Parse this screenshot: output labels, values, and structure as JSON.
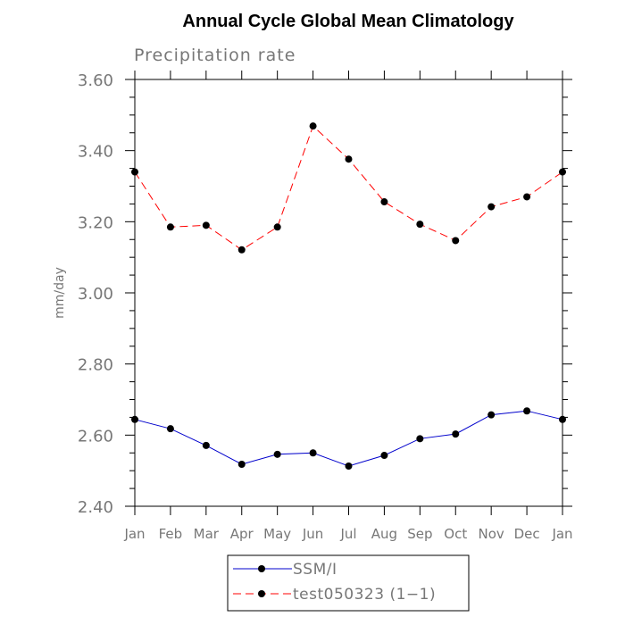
{
  "chart_data": {
    "type": "line",
    "title": "Annual Cycle Global Mean Climatology",
    "subtitle": "Precipitation rate",
    "xlabel": "",
    "ylabel": "mm/day",
    "categories": [
      "Jan",
      "Feb",
      "Mar",
      "Apr",
      "May",
      "Jun",
      "Jul",
      "Aug",
      "Sep",
      "Oct",
      "Nov",
      "Dec",
      "Jan"
    ],
    "ylim": [
      2.4,
      3.6
    ],
    "yticks": [
      "2.40",
      "2.60",
      "2.80",
      "3.00",
      "3.20",
      "3.40",
      "3.60"
    ],
    "ytick_values": [
      2.4,
      2.6,
      2.8,
      3.0,
      3.2,
      3.4,
      3.6
    ],
    "grid": false,
    "legend_position": "bottom",
    "series": [
      {
        "name": "SSM/I",
        "color": "#0000cc",
        "line_style": "solid",
        "values": [
          2.644,
          2.618,
          2.571,
          2.518,
          2.546,
          2.55,
          2.513,
          2.543,
          2.59,
          2.603,
          2.657,
          2.668,
          2.644
        ]
      },
      {
        "name": "test050323 (1−1)",
        "color": "#ff0000",
        "line_style": "dashed",
        "values": [
          3.34,
          3.185,
          3.19,
          3.121,
          3.185,
          3.469,
          3.376,
          3.256,
          3.193,
          3.147,
          3.242,
          3.27,
          3.34
        ]
      }
    ]
  }
}
